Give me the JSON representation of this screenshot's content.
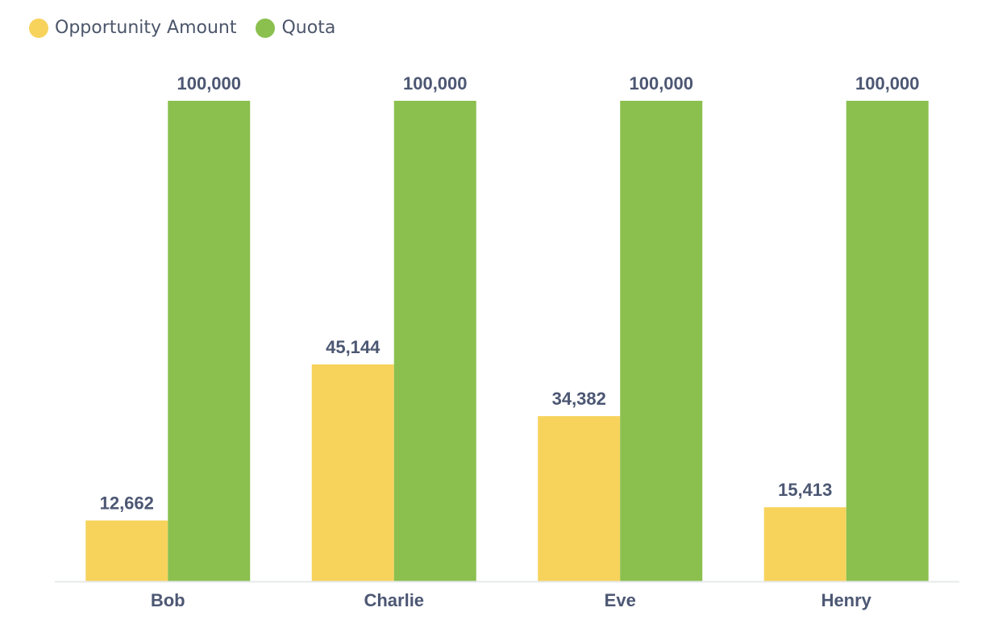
{
  "chart_data": {
    "type": "bar",
    "categories": [
      "Bob",
      "Charlie",
      "Eve",
      "Henry"
    ],
    "series": [
      {
        "name": "Opportunity Amount",
        "color": "#f7d35c",
        "values": [
          12662,
          45144,
          34382,
          15413
        ],
        "labels": [
          "12,662",
          "45,144",
          "34,382",
          "15,413"
        ]
      },
      {
        "name": "Quota",
        "color": "#8bc04f",
        "values": [
          100000,
          100000,
          100000,
          100000
        ],
        "labels": [
          "100,000",
          "100,000",
          "100,000",
          "100,000"
        ]
      }
    ],
    "ylim": [
      0,
      100000
    ],
    "grid": false,
    "legend_position": "top-left"
  }
}
